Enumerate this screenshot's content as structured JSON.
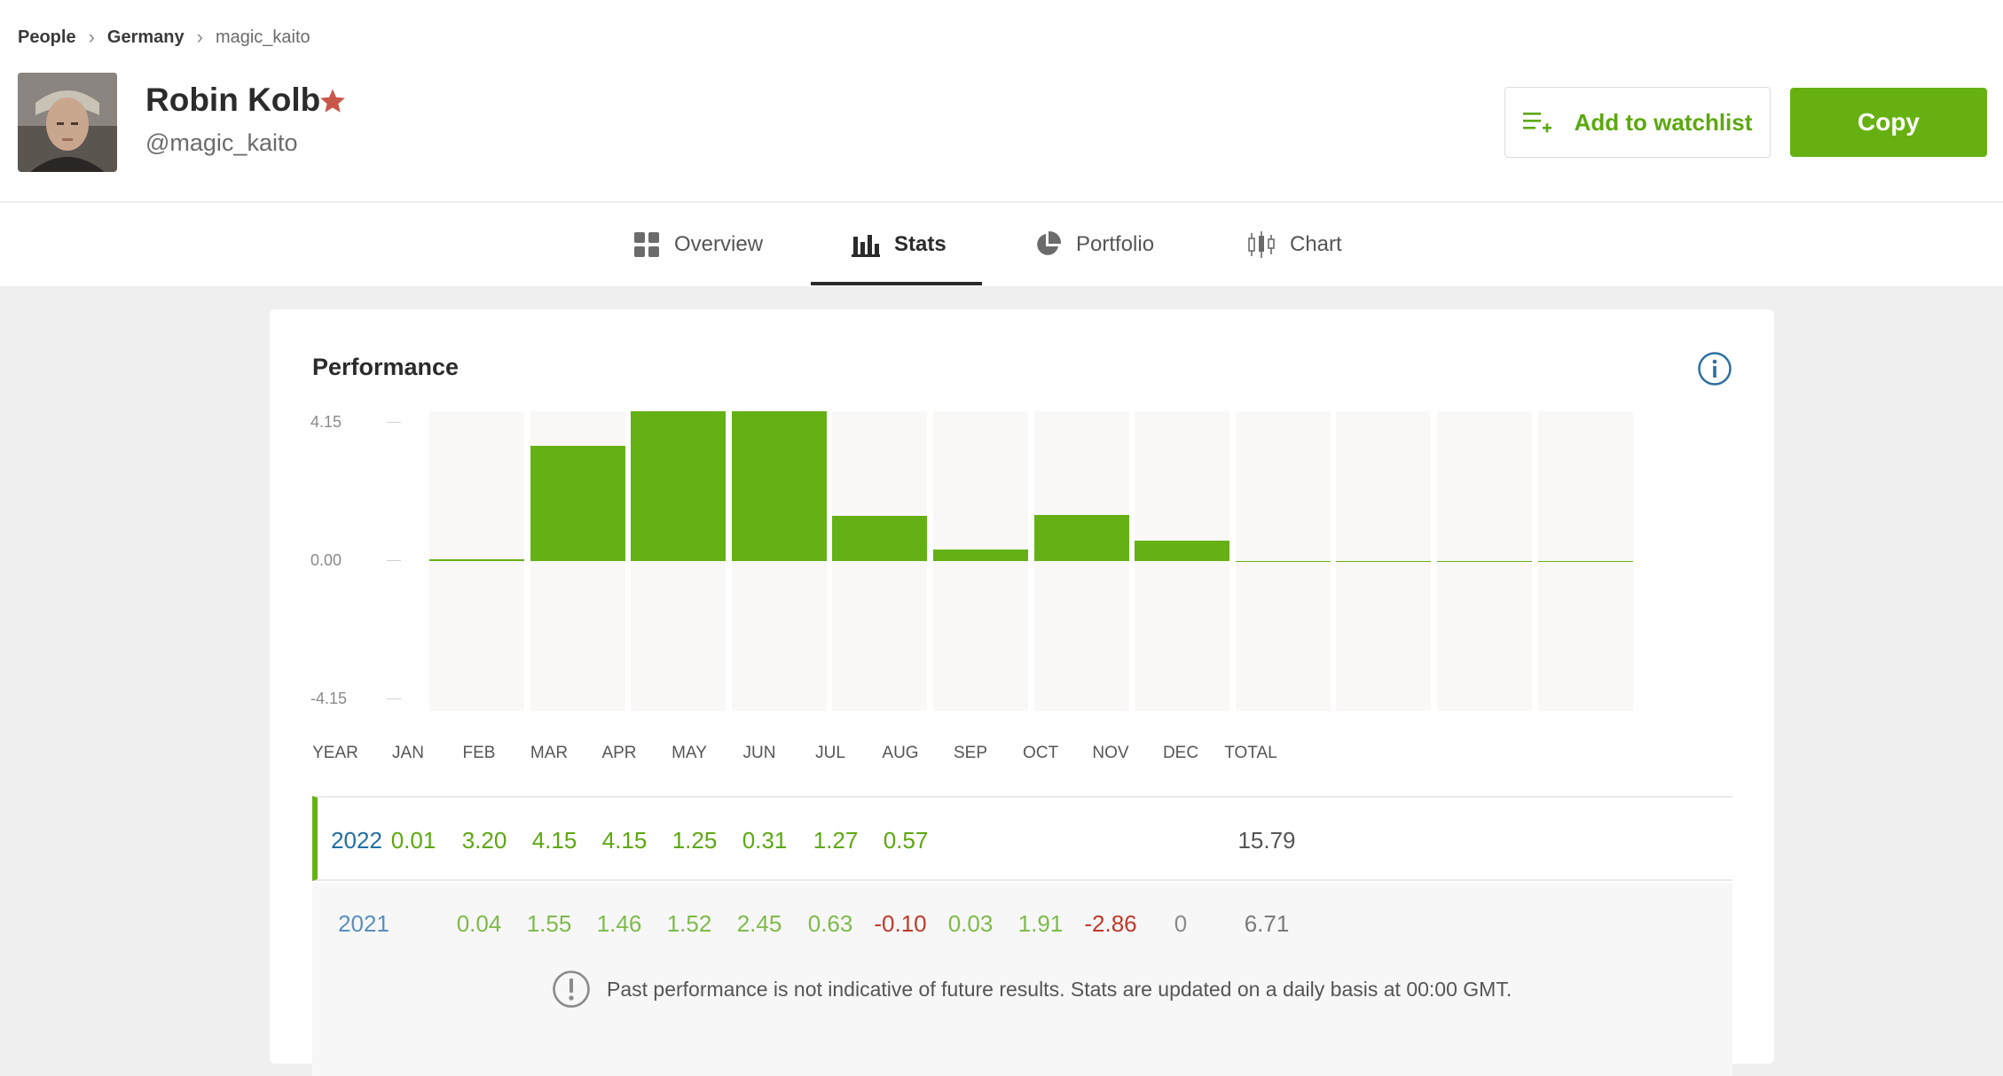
{
  "breadcrumb": {
    "items": [
      "People",
      "Germany",
      "magic_kaito"
    ],
    "separator": "›"
  },
  "profile": {
    "name": "Robin Kolb",
    "handle": "@magic_kaito",
    "star_color": "#c8574a"
  },
  "actions": {
    "watchlist_label": "Add to watchlist",
    "copy_label": "Copy",
    "accent": "#66b111"
  },
  "tabs": [
    {
      "label": "Overview",
      "icon": "grid-icon"
    },
    {
      "label": "Stats",
      "icon": "bar-chart-icon",
      "active": true
    },
    {
      "label": "Portfolio",
      "icon": "pie-chart-icon"
    },
    {
      "label": "Chart",
      "icon": "candlestick-icon"
    }
  ],
  "performance": {
    "title": "Performance",
    "disclaimer": "Past performance is not indicative of future results. Stats are updated on a daily basis at 00:00 GMT.",
    "columns": [
      "YEAR",
      "JAN",
      "FEB",
      "MAR",
      "APR",
      "MAY",
      "JUN",
      "JUL",
      "AUG",
      "SEP",
      "OCT",
      "NOV",
      "DEC",
      "TOTAL"
    ],
    "rows": [
      {
        "year": "2022",
        "values": [
          "0.01",
          "3.20",
          "4.15",
          "4.15",
          "1.25",
          "0.31",
          "1.27",
          "0.57",
          "",
          "",
          "",
          ""
        ],
        "total": "15.79"
      },
      {
        "year": "2021",
        "values": [
          "",
          "0.04",
          "1.55",
          "1.46",
          "1.52",
          "2.45",
          "0.63",
          "-0.10",
          "0.03",
          "1.91",
          "-2.86",
          "0"
        ],
        "total": "6.71"
      }
    ]
  },
  "chart_data": {
    "type": "bar",
    "categories": [
      "JAN",
      "FEB",
      "MAR",
      "APR",
      "MAY",
      "JUN",
      "JUL",
      "AUG",
      "SEP",
      "OCT",
      "NOV",
      "DEC"
    ],
    "values": [
      0.01,
      3.2,
      4.15,
      4.15,
      1.25,
      0.31,
      1.27,
      0.57,
      0,
      0,
      0,
      0
    ],
    "yticks": [
      "4.15",
      "0.00",
      "-4.15"
    ],
    "ylim": [
      -4.15,
      4.15
    ],
    "bar_color": "#65b115",
    "grid": false
  }
}
